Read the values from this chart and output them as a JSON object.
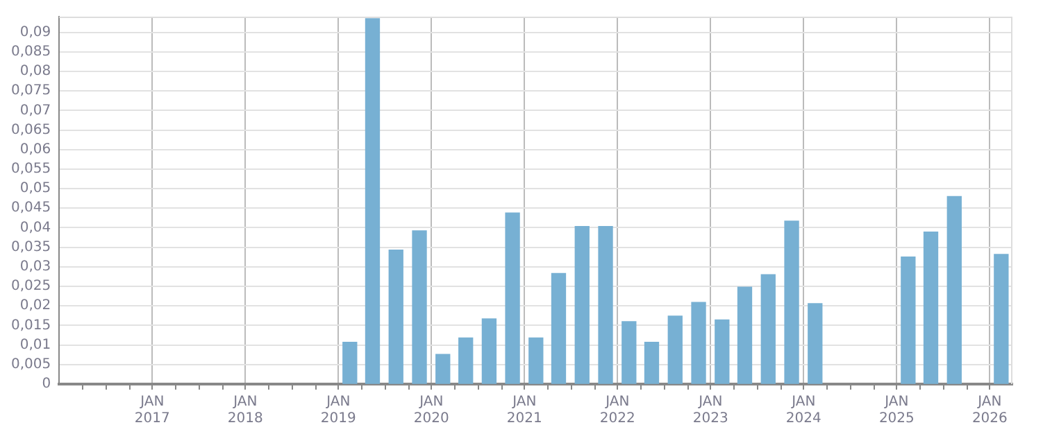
{
  "chart_data": {
    "type": "bar",
    "x": [
      "2019-02-15",
      "2019-05-15",
      "2019-08-15",
      "2019-11-15",
      "2020-02-15",
      "2020-05-15",
      "2020-08-15",
      "2020-11-15",
      "2021-02-15",
      "2021-05-15",
      "2021-08-15",
      "2021-11-15",
      "2022-02-15",
      "2022-05-15",
      "2022-08-15",
      "2022-11-15",
      "2023-02-15",
      "2023-05-15",
      "2023-08-15",
      "2023-11-15",
      "2024-02-15",
      "2025-02-15",
      "2025-05-15",
      "2025-08-15",
      "2026-02-15"
    ],
    "series": [
      {
        "color": "#77b0d3",
        "values": [
          0.0107,
          0.0935,
          0.0343,
          0.0392,
          0.0076,
          0.0118,
          0.0167,
          0.0438,
          0.0118,
          0.0283,
          0.0403,
          0.0403,
          0.016,
          0.0107,
          0.0174,
          0.0209,
          0.0164,
          0.0248,
          0.028,
          0.0417,
          0.0206,
          0.0325,
          0.0389,
          0.048,
          0.0332
        ]
      }
    ],
    "xlim": [
      "2016-01-01",
      "2026-03-31"
    ],
    "xticks": [
      {
        "value": "2016-04-01",
        "label": null
      },
      {
        "value": "2016-07-01",
        "label": null
      },
      {
        "value": "2016-10-01",
        "label": null
      },
      {
        "value": "2017-01-01",
        "label": "JAN 2017"
      },
      {
        "value": "2017-04-01",
        "label": null
      },
      {
        "value": "2017-07-01",
        "label": null
      },
      {
        "value": "2017-10-01",
        "label": null
      },
      {
        "value": "2018-01-01",
        "label": "JAN 2018"
      },
      {
        "value": "2018-04-01",
        "label": null
      },
      {
        "value": "2018-07-01",
        "label": null
      },
      {
        "value": "2018-10-01",
        "label": null
      },
      {
        "value": "2019-01-01",
        "label": "JAN 2019"
      },
      {
        "value": "2019-04-01",
        "label": null
      },
      {
        "value": "2019-07-01",
        "label": null
      },
      {
        "value": "2019-10-01",
        "label": null
      },
      {
        "value": "2020-01-01",
        "label": "JAN 2020"
      },
      {
        "value": "2020-04-01",
        "label": null
      },
      {
        "value": "2020-07-01",
        "label": null
      },
      {
        "value": "2020-10-01",
        "label": null
      },
      {
        "value": "2021-01-01",
        "label": "JAN 2021"
      },
      {
        "value": "2021-04-01",
        "label": null
      },
      {
        "value": "2021-07-01",
        "label": null
      },
      {
        "value": "2021-10-01",
        "label": null
      },
      {
        "value": "2022-01-01",
        "label": "JAN 2022"
      },
      {
        "value": "2022-04-01",
        "label": null
      },
      {
        "value": "2022-07-01",
        "label": null
      },
      {
        "value": "2022-10-01",
        "label": null
      },
      {
        "value": "2023-01-01",
        "label": "JAN 2023"
      },
      {
        "value": "2023-04-01",
        "label": null
      },
      {
        "value": "2023-07-01",
        "label": null
      },
      {
        "value": "2023-10-01",
        "label": null
      },
      {
        "value": "2024-01-01",
        "label": "JAN 2024"
      },
      {
        "value": "2024-04-01",
        "label": null
      },
      {
        "value": "2024-07-01",
        "label": null
      },
      {
        "value": "2024-10-01",
        "label": null
      },
      {
        "value": "2025-01-01",
        "label": "JAN 2025"
      },
      {
        "value": "2025-04-01",
        "label": null
      },
      {
        "value": "2025-07-01",
        "label": null
      },
      {
        "value": "2025-10-01",
        "label": null
      },
      {
        "value": "2026-01-01",
        "label": "JAN 2026"
      }
    ],
    "ylim": [
      0,
      0.094
    ],
    "yticks": [
      {
        "value": 0,
        "label": "0"
      },
      {
        "value": 0.005,
        "label": "0,005"
      },
      {
        "value": 0.01,
        "label": "0,01"
      },
      {
        "value": 0.015,
        "label": "0,015"
      },
      {
        "value": 0.02,
        "label": "0,02"
      },
      {
        "value": 0.025,
        "label": "0,025"
      },
      {
        "value": 0.03,
        "label": "0,03"
      },
      {
        "value": 0.035,
        "label": "0,035"
      },
      {
        "value": 0.04,
        "label": "0,04"
      },
      {
        "value": 0.045,
        "label": "0,045"
      },
      {
        "value": 0.05,
        "label": "0,05"
      },
      {
        "value": 0.055,
        "label": "0,055"
      },
      {
        "value": 0.06,
        "label": "0,06"
      },
      {
        "value": 0.065,
        "label": "0,065"
      },
      {
        "value": 0.07,
        "label": "0,07"
      },
      {
        "value": 0.075,
        "label": "0,075"
      },
      {
        "value": 0.08,
        "label": "0,08"
      },
      {
        "value": 0.085,
        "label": "0,085"
      },
      {
        "value": 0.09,
        "label": "0,09"
      }
    ],
    "grid": true,
    "legend": false
  }
}
